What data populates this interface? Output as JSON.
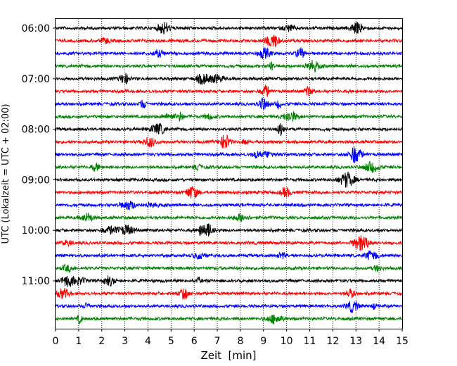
{
  "chart_data": {
    "type": "line",
    "title": "",
    "xlabel": "Zeit  [min]",
    "ylabel": "UTC (Lokalzeit = UTC + 02:00)",
    "xlim": [
      0,
      15
    ],
    "x_ticks": [
      "0",
      "1",
      "2",
      "3",
      "4",
      "5",
      "6",
      "7",
      "8",
      "9",
      "10",
      "11",
      "12",
      "13",
      "14",
      "15"
    ],
    "y_tick_labels": [
      "06:00",
      "07:00",
      "08:00",
      "09:00",
      "10:00",
      "11:00"
    ],
    "y_tick_trace_index": [
      0,
      4,
      8,
      12,
      16,
      20
    ],
    "trace_count": 24,
    "trace_start": "06:00",
    "trace_interval_minutes": 15,
    "trace_colors": [
      "#000000",
      "#ff0000",
      "#0000ff",
      "#008000"
    ],
    "grid": "vertical dotted lines at each minute"
  }
}
